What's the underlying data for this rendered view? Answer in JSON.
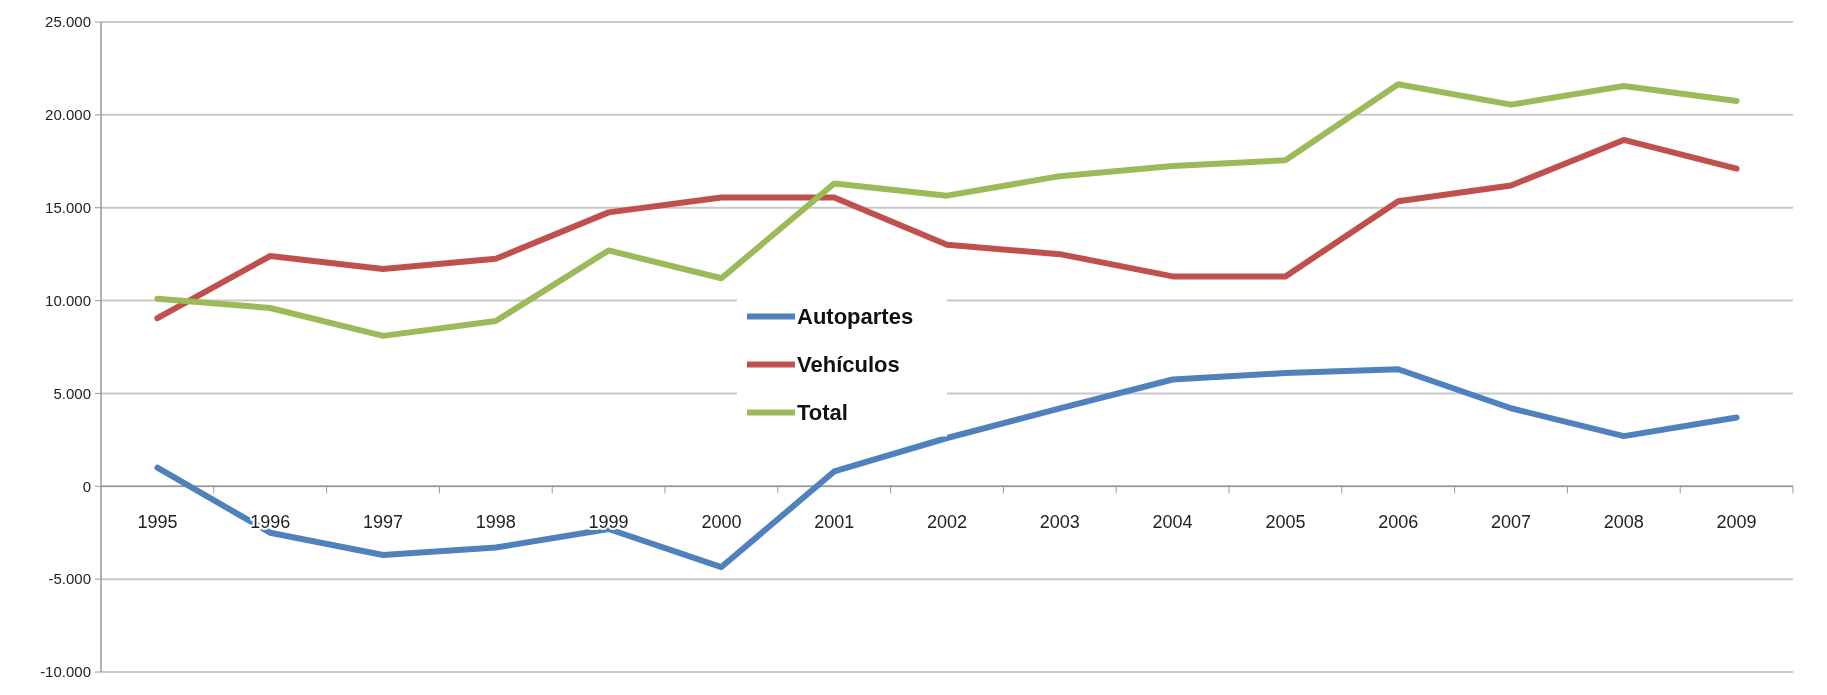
{
  "chart_data": {
    "type": "line",
    "categories": [
      "1995",
      "1996",
      "1997",
      "1998",
      "1999",
      "2000",
      "2001",
      "2002",
      "2003",
      "2004",
      "2005",
      "2006",
      "2007",
      "2008",
      "2009"
    ],
    "series": [
      {
        "name": "Autopartes",
        "color": "#4f81bd",
        "values": [
          1000,
          -2500,
          -3700,
          -3300,
          -2300,
          -4350,
          800,
          2600,
          4200,
          5750,
          6100,
          6300,
          4200,
          2700,
          3700
        ]
      },
      {
        "name": "Vehículos",
        "color": "#c0504d",
        "values": [
          9050,
          12400,
          11700,
          12250,
          14750,
          15550,
          15550,
          13000,
          12500,
          11300,
          11300,
          15350,
          16200,
          18650,
          17100
        ]
      },
      {
        "name": "Total",
        "color": "#9bbb59",
        "values": [
          10100,
          9600,
          8100,
          8900,
          12700,
          11200,
          16300,
          15650,
          16700,
          17250,
          17550,
          21650,
          20550,
          21550,
          20750
        ]
      }
    ],
    "ylim": [
      -10000,
      25000
    ],
    "yticks": [
      {
        "value": -10000,
        "label": "-10.000"
      },
      {
        "value": -5000,
        "label": "-5.000"
      },
      {
        "value": 0,
        "label": "0"
      },
      {
        "value": 5000,
        "label": "5.000"
      },
      {
        "value": 10000,
        "label": "10.000"
      },
      {
        "value": 15000,
        "label": "15.000"
      },
      {
        "value": 20000,
        "label": "20.000"
      },
      {
        "value": 25000,
        "label": "25.000"
      }
    ],
    "grid": "y",
    "legend": "center",
    "marker": "none",
    "line_style": "solid"
  }
}
